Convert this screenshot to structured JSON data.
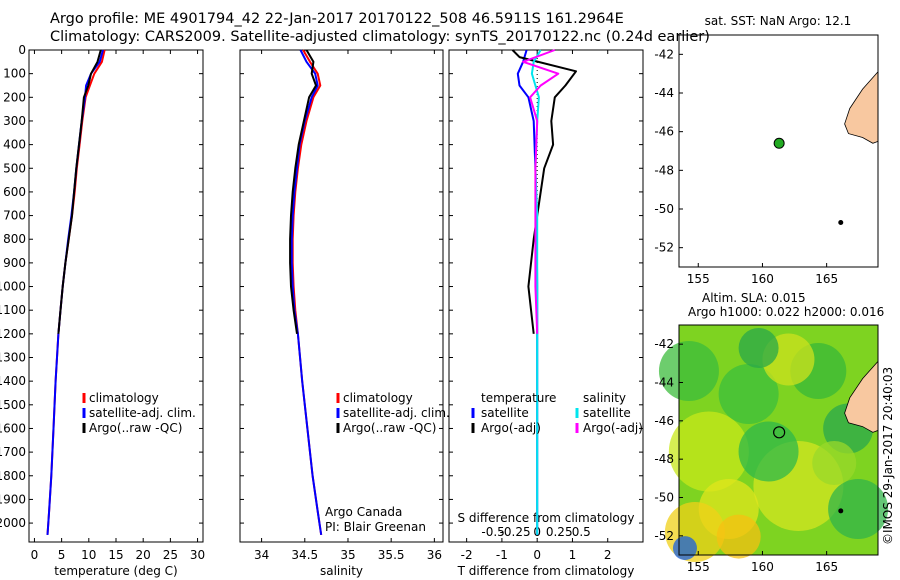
{
  "header": {
    "line1": "Argo profile: ME 4901794_42 22-Jan-2017 20170122_508 46.5911S 161.2964E",
    "line2": "Climatology: CARS2009. Satellite-adjusted climatology: synTS_20170122.nc (0.24d earlier)"
  },
  "colors": {
    "clim": "#ff0000",
    "sat": "#0000ff",
    "argo": "#000000",
    "sat_s": "#00e5ee",
    "argo_s": "#ff00ff",
    "land": "#f8c8a0",
    "dot": "#22aa22"
  },
  "chart_data": [
    {
      "type": "line",
      "panel": "temperature",
      "xlabel": "temperature (deg C)",
      "xlim": [
        -1,
        31
      ],
      "ylim": [
        2080,
        0
      ],
      "xticks": [
        0,
        5,
        10,
        15,
        20,
        25,
        30
      ],
      "yticks": [
        0,
        100,
        200,
        300,
        400,
        500,
        600,
        700,
        800,
        900,
        1000,
        1100,
        1200,
        1300,
        1400,
        1500,
        1600,
        1700,
        1800,
        1900,
        2000
      ],
      "legend": [
        "climatology",
        "satellite-adj. clim.",
        "Argo(..raw -QC)"
      ],
      "series": [
        {
          "name": "climatology",
          "color": "clim",
          "x": [
            12.9,
            12.4,
            11.0,
            10.2,
            9.4,
            8.8,
            8.3,
            7.8,
            7.4,
            6.9,
            6.3,
            5.7,
            5.2,
            4.8,
            4.4,
            3.9,
            3.5,
            3.1,
            2.7,
            2.4
          ],
          "y": [
            0,
            50,
            100,
            150,
            200,
            300,
            400,
            500,
            600,
            700,
            800,
            900,
            1000,
            1100,
            1200,
            1400,
            1600,
            1800,
            1950,
            2050
          ]
        },
        {
          "name": "satellite",
          "color": "sat",
          "x": [
            12.6,
            12.0,
            10.4,
            9.5,
            9.3,
            8.7,
            8.2,
            7.7,
            7.3,
            6.8,
            6.2,
            5.7,
            5.2,
            4.8,
            4.4,
            3.9,
            3.5,
            3.1,
            2.7,
            2.4
          ],
          "y": [
            0,
            50,
            100,
            150,
            200,
            300,
            400,
            500,
            600,
            700,
            800,
            900,
            1000,
            1100,
            1200,
            1400,
            1600,
            1800,
            1950,
            2050
          ]
        },
        {
          "name": "argo",
          "color": "argo",
          "x": [
            12.2,
            11.6,
            10.4,
            9.9,
            9.1,
            8.7,
            8.2,
            7.7,
            7.3,
            6.9,
            6.3,
            5.7,
            5.2,
            4.8,
            4.4
          ],
          "y": [
            0,
            50,
            100,
            150,
            200,
            300,
            400,
            500,
            600,
            700,
            800,
            900,
            1000,
            1100,
            1200
          ]
        }
      ]
    },
    {
      "type": "line",
      "panel": "salinity",
      "xlabel": "salinity",
      "xlim": [
        33.75,
        36.1
      ],
      "ylim": [
        2080,
        0
      ],
      "xticks": [
        34,
        34.5,
        35,
        35.5,
        36
      ],
      "legend": [
        "climatology",
        "satellite-adj. clim.",
        "Argo(..raw -QC)"
      ],
      "annotation": [
        "Argo Canada",
        "PI: Blair Greenan"
      ],
      "series": [
        {
          "name": "climatology",
          "color": "clim",
          "x": [
            34.48,
            34.56,
            34.65,
            34.68,
            34.6,
            34.52,
            34.46,
            34.42,
            34.39,
            34.37,
            34.36,
            34.36,
            34.37,
            34.39,
            34.42,
            34.47,
            34.53,
            34.59,
            34.65,
            34.69
          ],
          "y": [
            0,
            50,
            100,
            150,
            200,
            300,
            400,
            500,
            600,
            700,
            800,
            900,
            1000,
            1100,
            1200,
            1400,
            1600,
            1800,
            1950,
            2050
          ]
        },
        {
          "name": "satellite",
          "color": "sat",
          "x": [
            34.45,
            34.52,
            34.62,
            34.65,
            34.58,
            34.5,
            34.44,
            34.41,
            34.38,
            34.36,
            34.35,
            34.35,
            34.36,
            34.38,
            34.42,
            34.47,
            34.53,
            34.59,
            34.65,
            34.69
          ],
          "y": [
            0,
            50,
            100,
            150,
            200,
            300,
            400,
            500,
            600,
            700,
            800,
            900,
            1000,
            1100,
            1200,
            1400,
            1600,
            1800,
            1950,
            2050
          ]
        },
        {
          "name": "argo",
          "color": "argo",
          "x": [
            34.52,
            34.6,
            34.58,
            34.63,
            34.55,
            34.49,
            34.43,
            34.39,
            34.36,
            34.34,
            34.33,
            34.33,
            34.34,
            34.37,
            34.41
          ],
          "y": [
            0,
            50,
            100,
            150,
            200,
            300,
            400,
            500,
            600,
            700,
            800,
            900,
            1000,
            1100,
            1200
          ]
        }
      ]
    },
    {
      "type": "line",
      "panel": "difference",
      "xlabel": "T difference from climatology",
      "xlabel_top": "S difference from climatology",
      "xlim": [
        -2.5,
        3.0
      ],
      "ylim": [
        2080,
        0
      ],
      "xticks": [
        -2,
        -1,
        0,
        1,
        2
      ],
      "xticks_top": [
        "-0.5",
        "-0.25",
        "0",
        "0.25",
        "0.5"
      ],
      "legend_left_title": "temperature",
      "legend_right_title": "salinity",
      "legend_left": [
        "satellite",
        "Argo(-adj)"
      ],
      "legend_right": [
        "satellite",
        "Argo(-adj)"
      ],
      "series": [
        {
          "name": "T satellite",
          "color": "sat",
          "x": [
            -0.3,
            -0.4,
            -0.55,
            -0.5,
            -0.25,
            -0.1,
            -0.05,
            -0.02,
            0,
            0,
            0,
            0
          ],
          "y": [
            0,
            50,
            100,
            150,
            200,
            300,
            500,
            700,
            1000,
            1400,
            1800,
            2050
          ]
        },
        {
          "name": "T argo",
          "color": "argo",
          "x": [
            -0.7,
            -0.5,
            1.1,
            0.8,
            0.5,
            0.4,
            0.45,
            0.2,
            -0.1,
            -0.25,
            -0.1
          ],
          "y": [
            0,
            30,
            90,
            150,
            200,
            300,
            400,
            500,
            800,
            1000,
            1200
          ]
        },
        {
          "name": "S satellite",
          "color": "sat_s",
          "x": [
            0.1,
            -0.1,
            -0.15,
            -0.05,
            0.05,
            0.0,
            -0.05,
            0,
            0,
            0,
            0,
            0
          ],
          "y": [
            0,
            50,
            100,
            150,
            200,
            300,
            500,
            700,
            1000,
            1400,
            1800,
            2050
          ]
        },
        {
          "name": "S argo",
          "color": "argo_s",
          "x": [
            0.5,
            -0.4,
            0.6,
            0.1,
            -0.2,
            0,
            -0.05,
            -0.05,
            -0.05,
            0
          ],
          "y": [
            0,
            50,
            100,
            150,
            200,
            300,
            500,
            800,
            1000,
            1200
          ]
        }
      ]
    },
    {
      "type": "scatter",
      "panel": "sst map",
      "title": "sat. SST: NaN Argo: 12.1",
      "xticks": [
        155,
        160,
        165
      ],
      "yticks": [
        -42,
        -44,
        -46,
        -48,
        -50,
        -52
      ],
      "xlim": [
        153.5,
        169
      ],
      "ylim": [
        -53,
        -41
      ],
      "point": {
        "lon": 161.3,
        "lat": -46.6
      }
    },
    {
      "type": "heatmap",
      "panel": "sla map",
      "title1": "Altim. SLA: 0.015",
      "title2": "Argo h1000: 0.022 h2000: 0.016",
      "xticks": [
        155,
        160,
        165
      ],
      "yticks": [
        -42,
        -44,
        -46,
        -48,
        -50,
        -52
      ],
      "xlim": [
        153.5,
        169
      ],
      "ylim": [
        -53,
        -41
      ],
      "point": {
        "lon": 161.3,
        "lat": -46.6
      }
    }
  ],
  "footer": {
    "imos": "©IMOS 29-Jan-2017 20:40:03"
  }
}
